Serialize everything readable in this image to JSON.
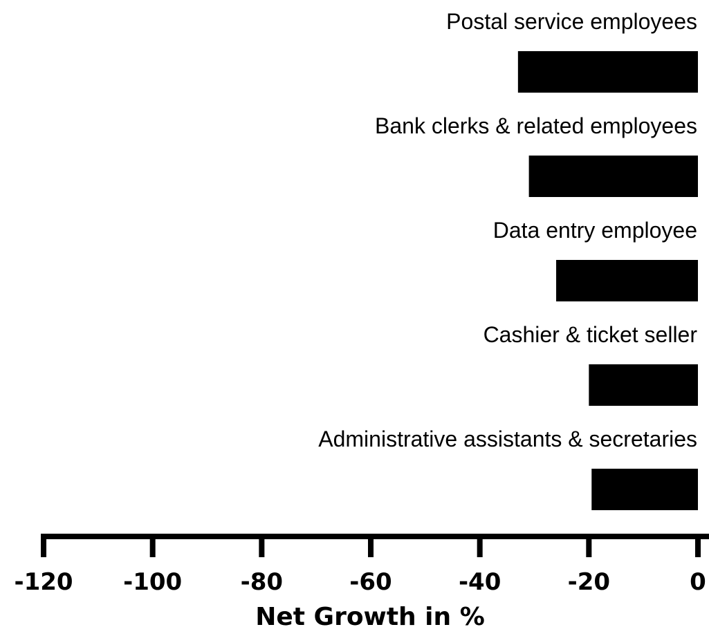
{
  "chart_data": {
    "type": "bar",
    "orientation": "horizontal",
    "categories": [
      "Postal service employees",
      "Bank clerks & related employees",
      "Data entry employee",
      "Cashier & ticket seller",
      "Administrative assistants & secretaries"
    ],
    "values": [
      -33,
      -31,
      -26,
      -20,
      -19.5
    ],
    "xlabel": "Net Growth in %",
    "ylabel": "",
    "title": "",
    "xlim": [
      -120,
      0
    ],
    "xticks": [
      "-120",
      "-100",
      "-80",
      "-60",
      "-40",
      "-20",
      "0"
    ],
    "bar_color": "#000000",
    "grid": false,
    "legend": "none"
  }
}
